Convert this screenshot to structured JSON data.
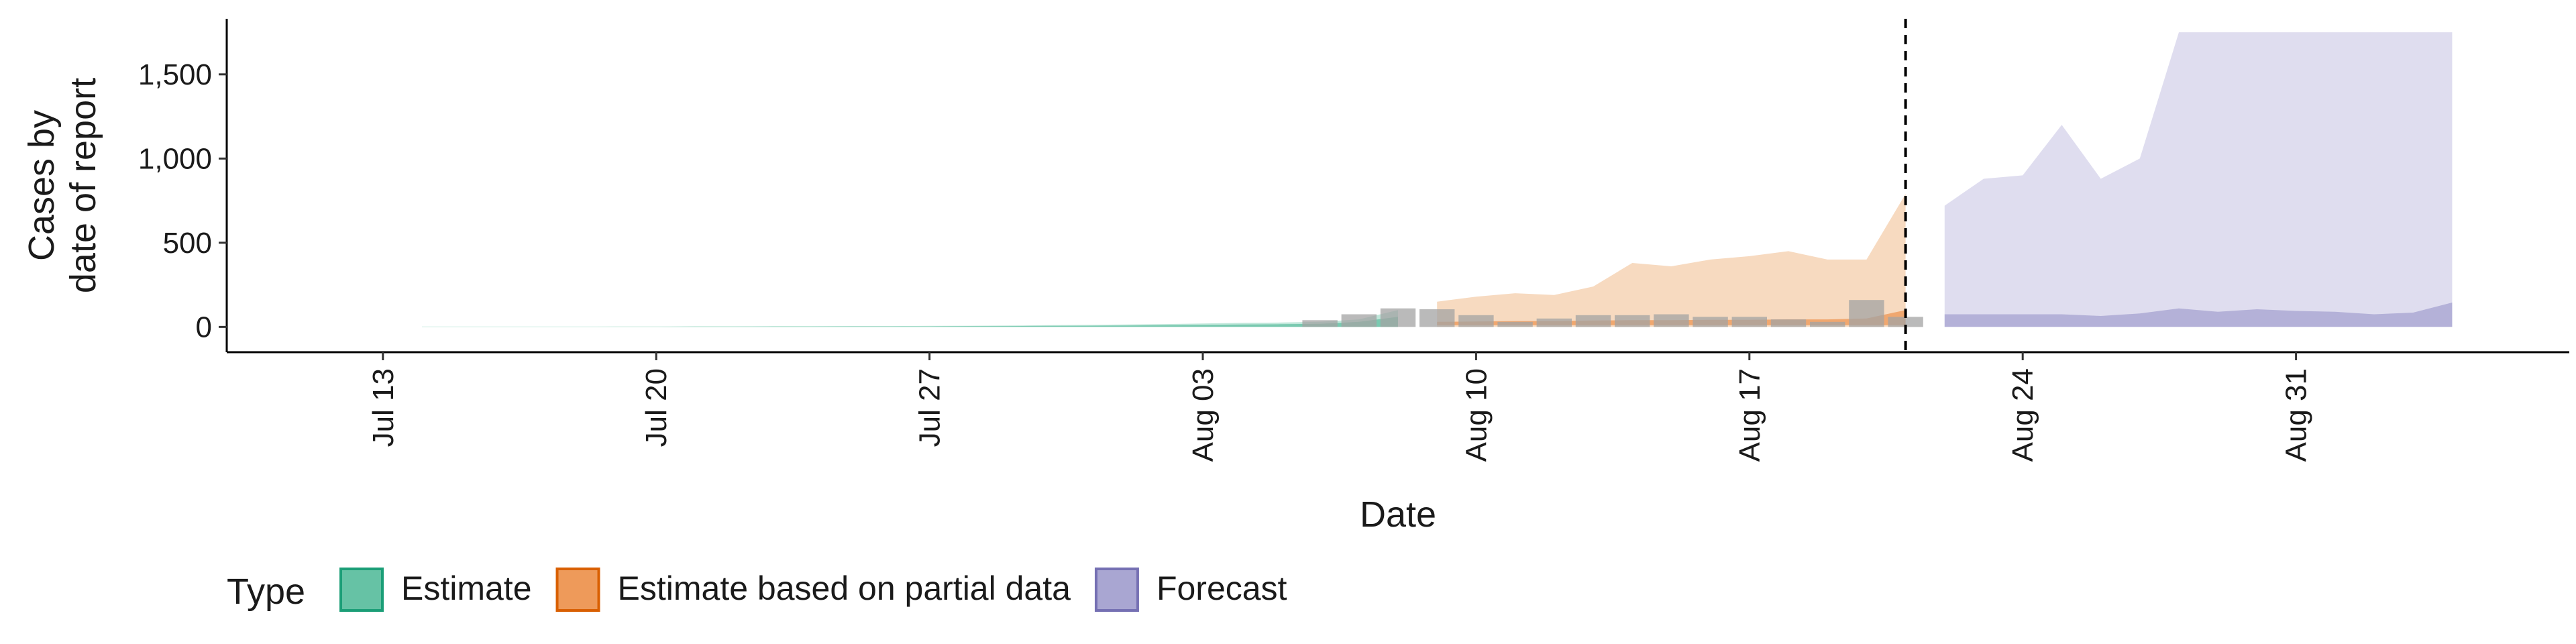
{
  "chart_data": {
    "type": "area",
    "xlabel": "Date",
    "ylabel_lines": [
      "Cases by",
      "date of report"
    ],
    "ylim": [
      -150,
      1830
    ],
    "xlim": [
      "2020-07-09",
      "2020-09-07"
    ],
    "y_ticks": [
      0,
      500,
      1000,
      1500
    ],
    "y_tick_labels": [
      "0",
      "500",
      "1,000",
      "1,500"
    ],
    "x_ticks": [
      {
        "date": "2020-07-13",
        "label": "Jul 13"
      },
      {
        "date": "2020-07-20",
        "label": "Jul 20"
      },
      {
        "date": "2020-07-27",
        "label": "Jul 27"
      },
      {
        "date": "2020-08-03",
        "label": "Aug 03"
      },
      {
        "date": "2020-08-10",
        "label": "Aug 10"
      },
      {
        "date": "2020-08-17",
        "label": "Aug 17"
      },
      {
        "date": "2020-08-24",
        "label": "Aug 24"
      },
      {
        "date": "2020-08-31",
        "label": "Aug 31"
      }
    ],
    "vline_date": "2020-08-21",
    "grid": false,
    "legend": {
      "position": "bottom-left",
      "title": "Type",
      "entries": [
        {
          "label": "Estimate",
          "fill": "#66c2a5",
          "stroke": "#1b9e77"
        },
        {
          "label": "Estimate based on partial data",
          "fill": "#ee9a5a",
          "stroke": "#d95f02"
        },
        {
          "label": "Forecast",
          "fill": "#a9a6d2",
          "stroke": "#7570b3"
        }
      ]
    },
    "series": [
      {
        "name": "Estimate",
        "outer_color": "#b5e3d4",
        "inner_color": "#66c2a5",
        "dates": [
          "2020-07-14",
          "2020-07-15",
          "2020-07-16",
          "2020-07-17",
          "2020-07-18",
          "2020-07-19",
          "2020-07-20",
          "2020-07-21",
          "2020-07-22",
          "2020-07-23",
          "2020-07-24",
          "2020-07-25",
          "2020-07-26",
          "2020-07-27",
          "2020-07-28",
          "2020-07-29",
          "2020-07-30",
          "2020-07-31",
          "2020-08-01",
          "2020-08-02",
          "2020-08-03",
          "2020-08-04",
          "2020-08-05",
          "2020-08-06",
          "2020-08-07",
          "2020-08-08"
        ],
        "upper": [
          2,
          2,
          2,
          2,
          2,
          3,
          3,
          3,
          3,
          4,
          4,
          5,
          5,
          6,
          7,
          8,
          10,
          12,
          14,
          17,
          20,
          24,
          26,
          30,
          45,
          100
        ],
        "lower": [
          0,
          0,
          0,
          0,
          0,
          0,
          0,
          0,
          0,
          0,
          0,
          0,
          0,
          0,
          0,
          0,
          0,
          0,
          0,
          0,
          0,
          0,
          0,
          0,
          0,
          0
        ],
        "inner_upper": [
          1,
          1,
          1,
          1,
          1,
          1,
          1,
          2,
          2,
          2,
          2,
          3,
          3,
          3,
          4,
          5,
          6,
          7,
          8,
          10,
          12,
          14,
          16,
          18,
          30,
          60
        ],
        "inner_lower": [
          0,
          0,
          0,
          0,
          0,
          0,
          0,
          0,
          0,
          0,
          0,
          0,
          0,
          0,
          0,
          0,
          0,
          0,
          0,
          0,
          0,
          0,
          0,
          0,
          0,
          0
        ]
      },
      {
        "name": "Estimate based on partial data",
        "outer_color": "#f6d3b5",
        "inner_color": "#ee9a5a",
        "dates": [
          "2020-08-09",
          "2020-08-10",
          "2020-08-11",
          "2020-08-12",
          "2020-08-13",
          "2020-08-14",
          "2020-08-15",
          "2020-08-16",
          "2020-08-17",
          "2020-08-18",
          "2020-08-19",
          "2020-08-20",
          "2020-08-21"
        ],
        "upper": [
          150,
          180,
          200,
          190,
          240,
          380,
          360,
          400,
          420,
          450,
          400,
          400,
          790
        ],
        "lower": [
          0,
          0,
          0,
          0,
          0,
          0,
          0,
          0,
          0,
          0,
          0,
          0,
          0
        ],
        "inner_upper": [
          30,
          32,
          35,
          35,
          38,
          40,
          40,
          42,
          42,
          45,
          45,
          50,
          100
        ],
        "inner_lower": [
          10,
          10,
          10,
          10,
          10,
          10,
          10,
          10,
          10,
          10,
          10,
          10,
          10
        ]
      },
      {
        "name": "Forecast",
        "outer_color": "#d9d7ec",
        "inner_color": "#a9a6d2",
        "dates": [
          "2020-08-22",
          "2020-08-23",
          "2020-08-24",
          "2020-08-25",
          "2020-08-26",
          "2020-08-27",
          "2020-08-28",
          "2020-08-29",
          "2020-08-30",
          "2020-08-31",
          "2020-09-01",
          "2020-09-02",
          "2020-09-03",
          "2020-09-04"
        ],
        "upper": [
          720,
          880,
          900,
          1200,
          880,
          1000,
          1750,
          1750,
          1750,
          1750,
          1750,
          1750,
          1750,
          1750
        ],
        "lower": [
          0,
          0,
          0,
          0,
          0,
          0,
          0,
          0,
          0,
          0,
          0,
          0,
          0,
          0
        ],
        "inner_upper": [
          75,
          75,
          75,
          75,
          65,
          80,
          110,
          90,
          105,
          95,
          90,
          75,
          85,
          145
        ],
        "inner_lower": [
          0,
          0,
          0,
          0,
          0,
          0,
          0,
          0,
          0,
          0,
          0,
          0,
          0,
          0
        ]
      }
    ],
    "reported_cases": {
      "color": "#a3a3a3",
      "bars": [
        {
          "date": "2020-08-06",
          "value": 40
        },
        {
          "date": "2020-08-07",
          "value": 75
        },
        {
          "date": "2020-08-08",
          "value": 110
        },
        {
          "date": "2020-08-09",
          "value": 105
        },
        {
          "date": "2020-08-10",
          "value": 70
        },
        {
          "date": "2020-08-11",
          "value": 30
        },
        {
          "date": "2020-08-12",
          "value": 50
        },
        {
          "date": "2020-08-13",
          "value": 70
        },
        {
          "date": "2020-08-14",
          "value": 70
        },
        {
          "date": "2020-08-15",
          "value": 75
        },
        {
          "date": "2020-08-16",
          "value": 60
        },
        {
          "date": "2020-08-17",
          "value": 60
        },
        {
          "date": "2020-08-18",
          "value": 45
        },
        {
          "date": "2020-08-19",
          "value": 30
        },
        {
          "date": "2020-08-20",
          "value": 160
        },
        {
          "date": "2020-08-21",
          "value": 60
        }
      ]
    }
  }
}
